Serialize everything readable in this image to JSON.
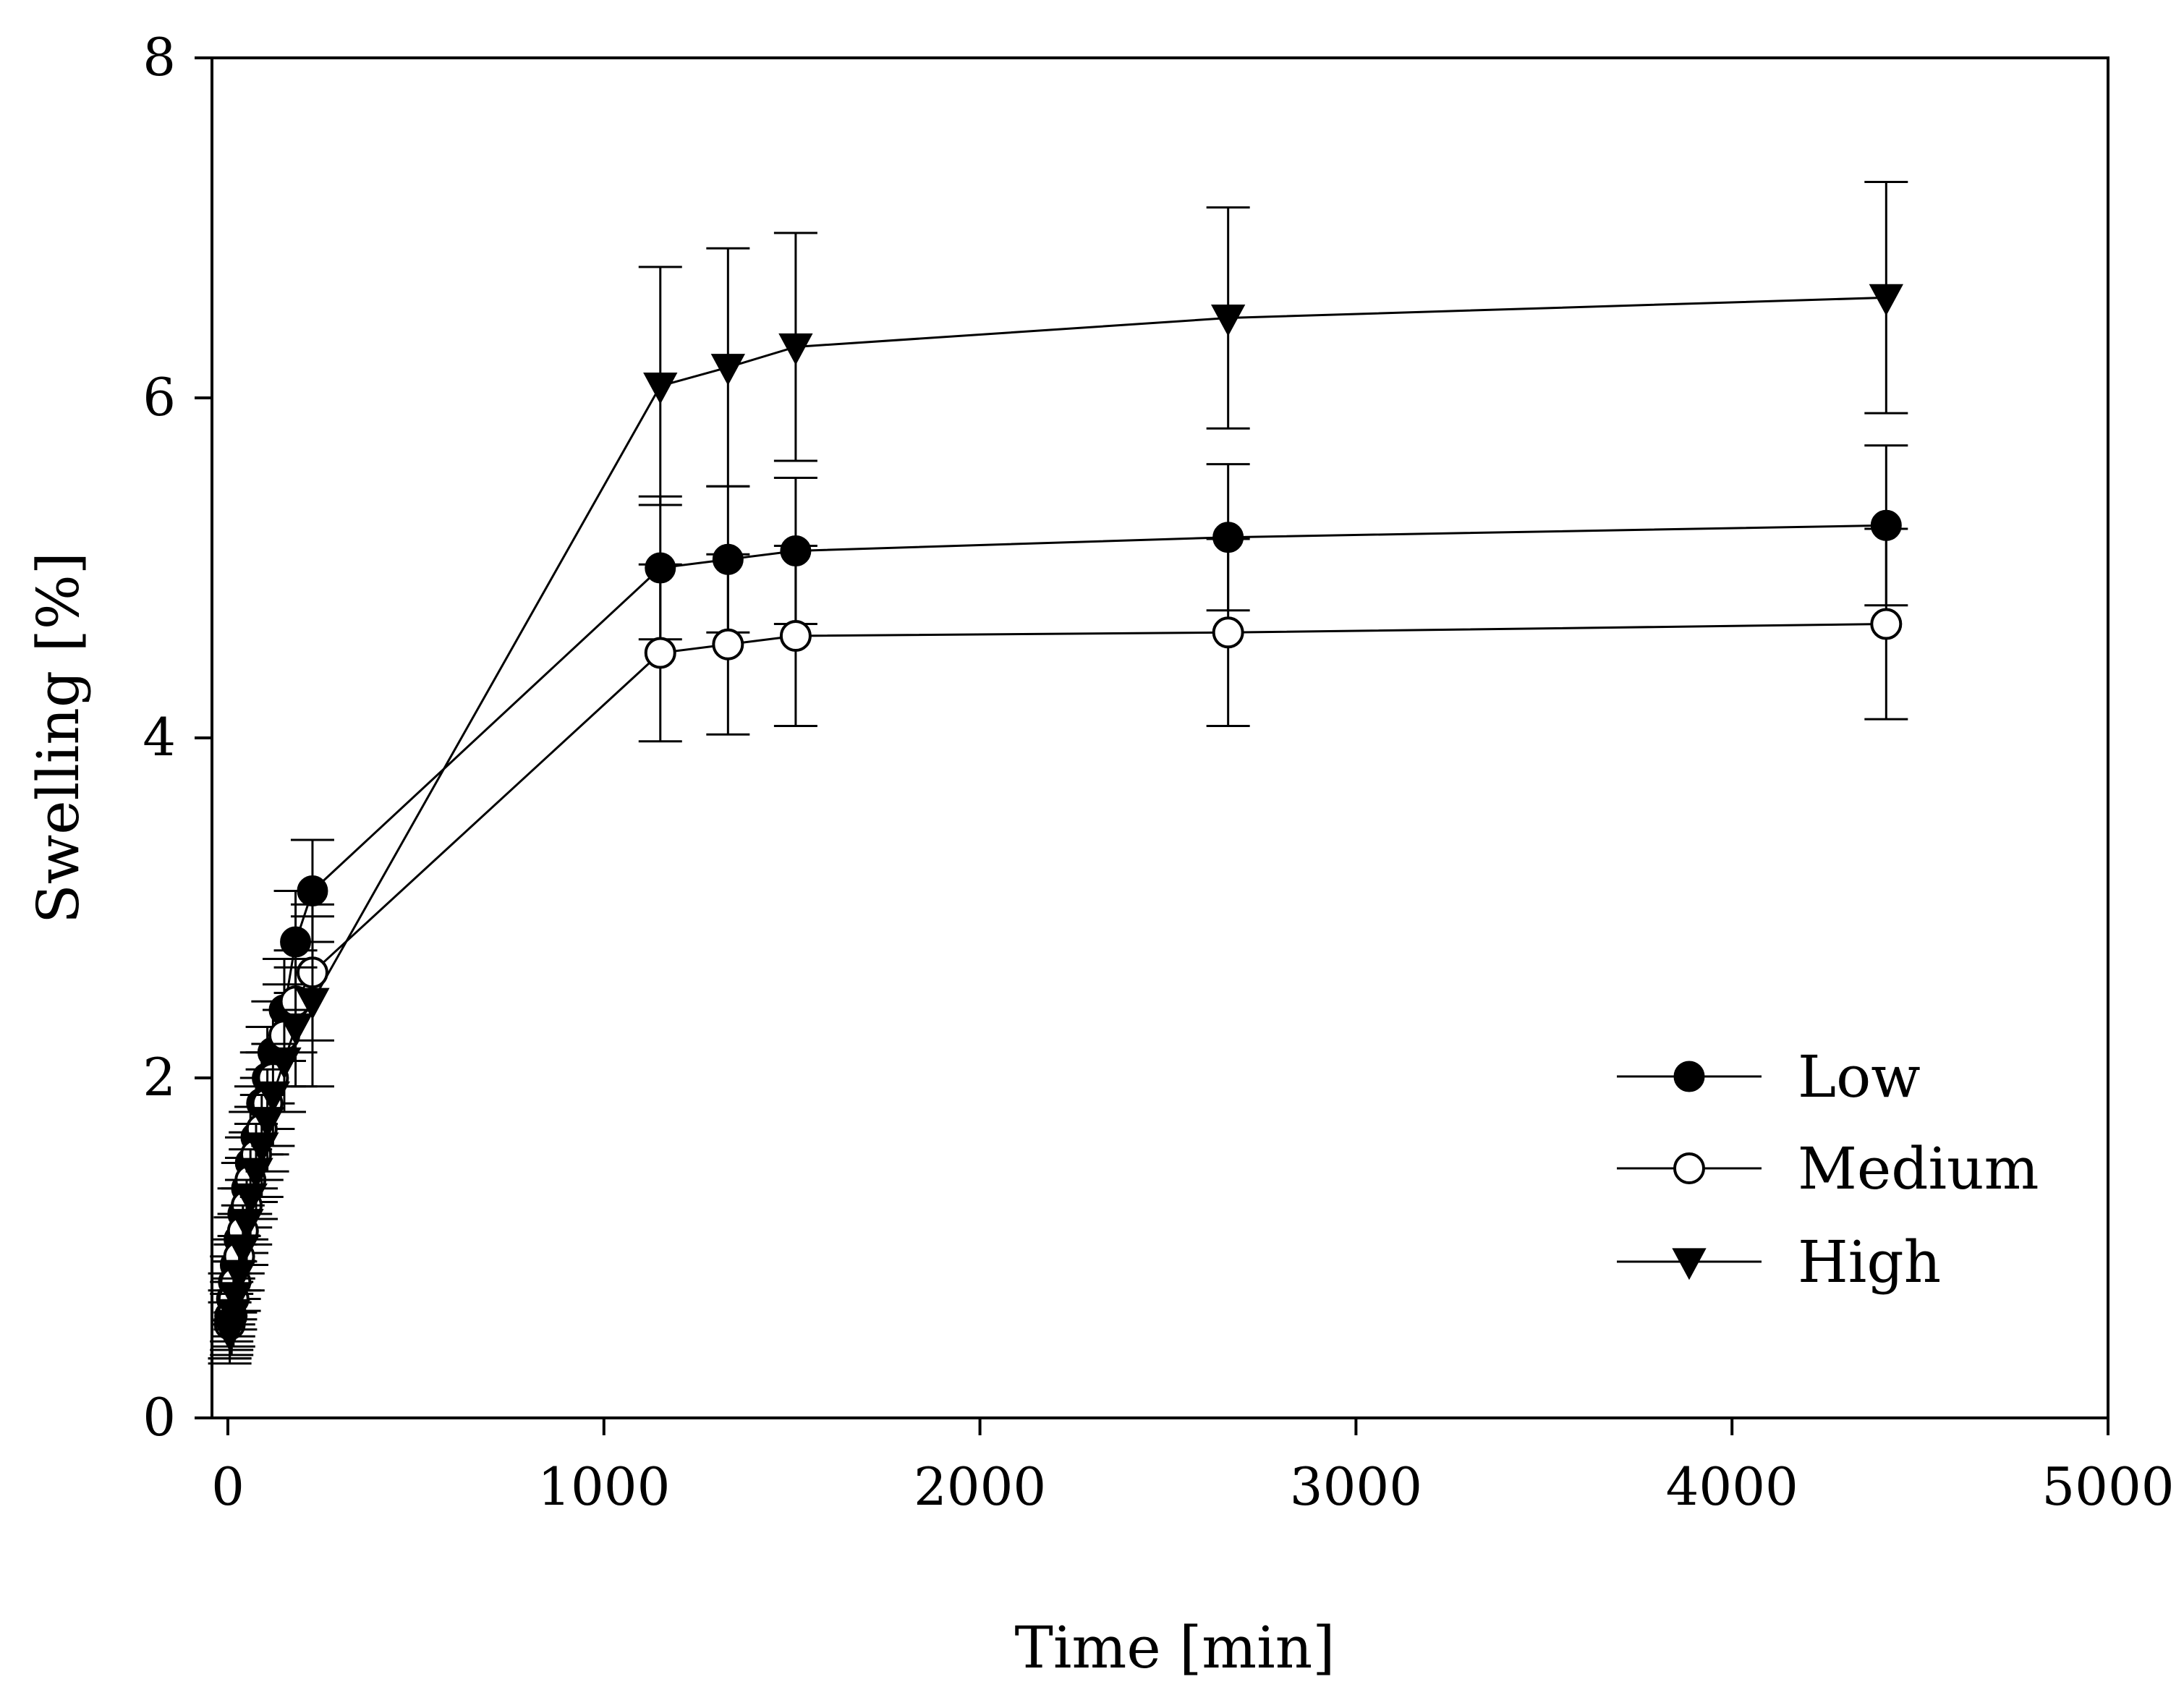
{
  "chart_data": {
    "type": "line",
    "title": "",
    "xlabel": "Time [min]",
    "ylabel": "Swelling [%]",
    "xlim": [
      0,
      5000
    ],
    "ylim": [
      0,
      8
    ],
    "xticks": [
      0,
      1000,
      2000,
      3000,
      4000,
      5000
    ],
    "yticks": [
      0,
      2,
      4,
      6,
      8
    ],
    "grid": false,
    "legend_position": "bottom-right",
    "x": [
      5,
      10,
      15,
      20,
      30,
      40,
      50,
      60,
      75,
      90,
      105,
      120,
      150,
      180,
      225,
      1150,
      1330,
      1510,
      2660,
      4410
    ],
    "series": [
      {
        "name": "Low",
        "marker": "filled-circle",
        "values": [
          0.6,
          0.7,
          0.8,
          0.9,
          1.05,
          1.2,
          1.35,
          1.5,
          1.65,
          1.85,
          2.0,
          2.15,
          2.4,
          2.8,
          3.1,
          5.0,
          5.05,
          5.1,
          5.18,
          5.25
        ],
        "errors": [
          0.25,
          0.25,
          0.25,
          0.28,
          0.3,
          0.3,
          0.3,
          0.3,
          0.3,
          0.3,
          0.3,
          0.3,
          0.3,
          0.3,
          0.3,
          0.42,
          0.43,
          0.43,
          0.43,
          0.47
        ]
      },
      {
        "name": "Medium",
        "marker": "open-circle",
        "values": [
          0.55,
          0.6,
          0.7,
          0.8,
          0.95,
          1.1,
          1.25,
          1.4,
          1.55,
          1.7,
          1.85,
          2.0,
          2.25,
          2.45,
          2.62,
          4.5,
          4.55,
          4.6,
          4.62,
          4.67
        ],
        "errors": [
          0.2,
          0.2,
          0.22,
          0.22,
          0.25,
          0.25,
          0.28,
          0.28,
          0.28,
          0.3,
          0.3,
          0.3,
          0.3,
          0.3,
          0.4,
          0.52,
          0.53,
          0.53,
          0.55,
          0.56
        ]
      },
      {
        "name": "High",
        "marker": "filled-triangle-down",
        "values": [
          0.5,
          0.55,
          0.62,
          0.72,
          0.85,
          1.0,
          1.15,
          1.3,
          1.45,
          1.6,
          1.75,
          1.9,
          2.1,
          2.3,
          2.45,
          6.07,
          6.18,
          6.3,
          6.47,
          6.59
        ],
        "errors": [
          0.18,
          0.18,
          0.2,
          0.2,
          0.22,
          0.25,
          0.25,
          0.28,
          0.28,
          0.3,
          0.3,
          0.3,
          0.3,
          0.35,
          0.5,
          0.7,
          0.7,
          0.67,
          0.65,
          0.68
        ]
      }
    ]
  }
}
